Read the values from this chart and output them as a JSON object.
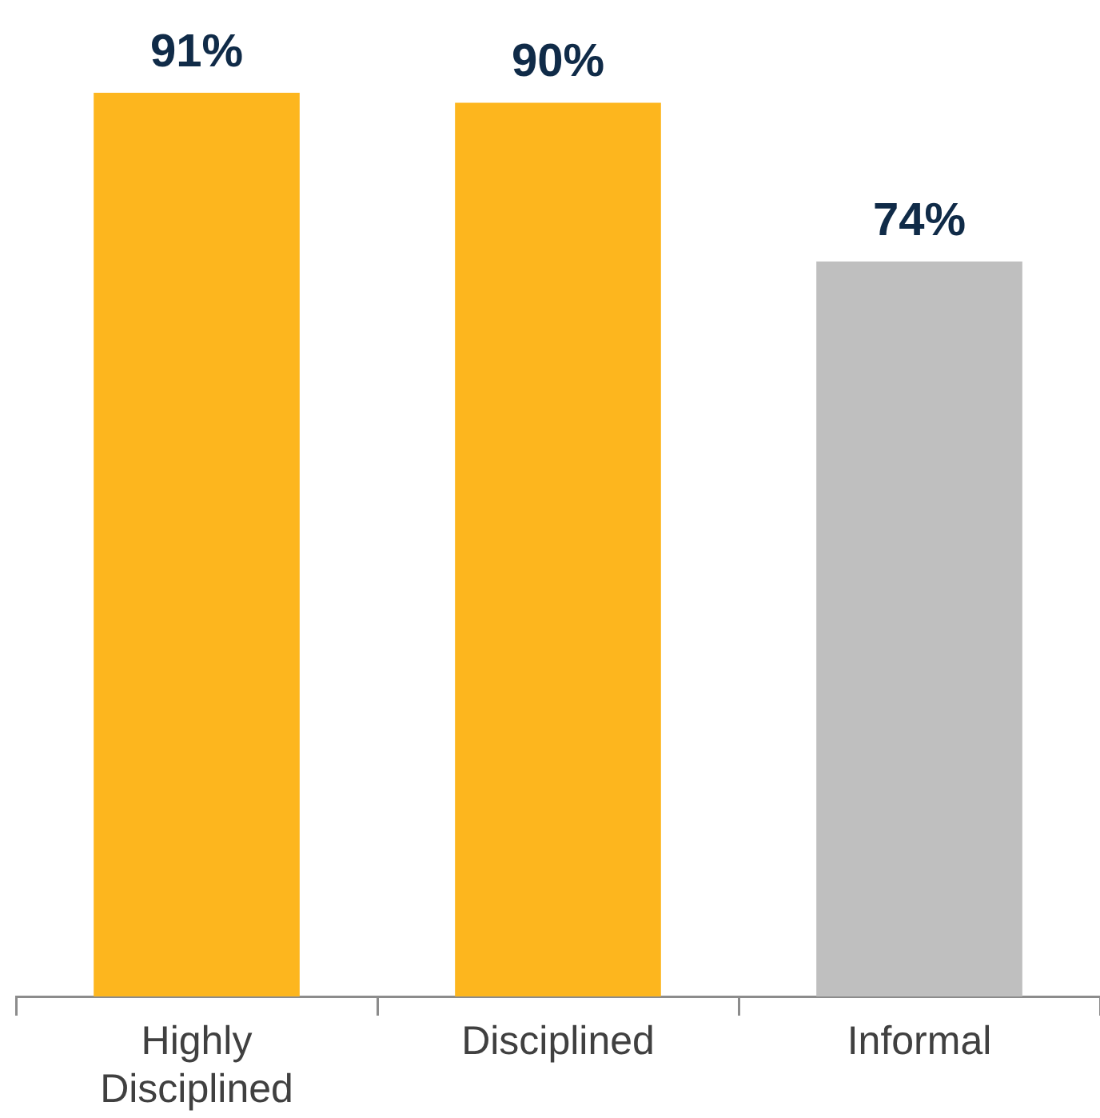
{
  "chart_data": {
    "type": "bar",
    "categories": [
      "Highly Disciplined",
      "Disciplined",
      "Informal"
    ],
    "values": [
      91,
      90,
      74
    ],
    "colors": [
      "#fdb61e",
      "#fdb61e",
      "#bfbfbf"
    ],
    "value_labels": [
      "91%",
      "90%",
      "74%"
    ],
    "grid": false,
    "legend": false
  }
}
